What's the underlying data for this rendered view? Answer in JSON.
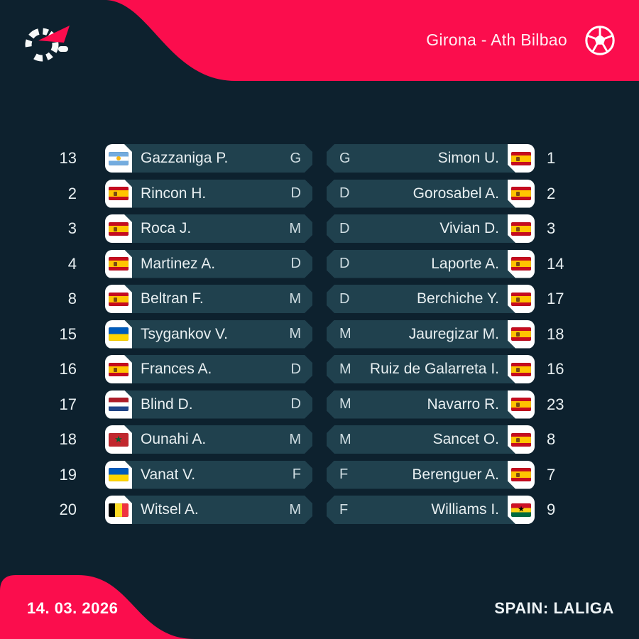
{
  "header": {
    "title": "Girona - Ath Bilbao",
    "logo_icon": "flashscore-logo",
    "ball_icon": "soccer-ball-icon",
    "accent_color": "#fb0d4d",
    "background_color": "#0d212e",
    "pill_color": "#20414e"
  },
  "footer": {
    "date": "14. 03. 2026",
    "league": "SPAIN: LALIGA"
  },
  "lineups": {
    "home": [
      {
        "number": "13",
        "country": "argentina",
        "name": "Gazzaniga P.",
        "position": "G"
      },
      {
        "number": "2",
        "country": "spain",
        "name": "Rincon H.",
        "position": "D"
      },
      {
        "number": "3",
        "country": "spain",
        "name": "Roca J.",
        "position": "M"
      },
      {
        "number": "4",
        "country": "spain",
        "name": "Martinez A.",
        "position": "D"
      },
      {
        "number": "8",
        "country": "spain",
        "name": "Beltran F.",
        "position": "M"
      },
      {
        "number": "15",
        "country": "ukraine",
        "name": "Tsygankov V.",
        "position": "M"
      },
      {
        "number": "16",
        "country": "spain",
        "name": "Frances A.",
        "position": "D"
      },
      {
        "number": "17",
        "country": "netherlands",
        "name": "Blind D.",
        "position": "D"
      },
      {
        "number": "18",
        "country": "morocco",
        "name": "Ounahi A.",
        "position": "M"
      },
      {
        "number": "19",
        "country": "ukraine",
        "name": "Vanat V.",
        "position": "F"
      },
      {
        "number": "20",
        "country": "belgium",
        "name": "Witsel A.",
        "position": "M"
      }
    ],
    "away": [
      {
        "position": "G",
        "name": "Simon U.",
        "country": "spain",
        "number": "1"
      },
      {
        "position": "D",
        "name": "Gorosabel A.",
        "country": "spain",
        "number": "2"
      },
      {
        "position": "D",
        "name": "Vivian D.",
        "country": "spain",
        "number": "3"
      },
      {
        "position": "D",
        "name": "Laporte A.",
        "country": "spain",
        "number": "14"
      },
      {
        "position": "D",
        "name": "Berchiche Y.",
        "country": "spain",
        "number": "17"
      },
      {
        "position": "M",
        "name": "Jauregizar M.",
        "country": "spain",
        "number": "18"
      },
      {
        "position": "M",
        "name": "Ruiz de Galarreta I.",
        "country": "spain",
        "number": "16"
      },
      {
        "position": "M",
        "name": "Navarro R.",
        "country": "spain",
        "number": "23"
      },
      {
        "position": "M",
        "name": "Sancet O.",
        "country": "spain",
        "number": "8"
      },
      {
        "position": "F",
        "name": "Berenguer A.",
        "country": "spain",
        "number": "7"
      },
      {
        "position": "F",
        "name": "Williams I.",
        "country": "ghana",
        "number": "9"
      }
    ]
  }
}
